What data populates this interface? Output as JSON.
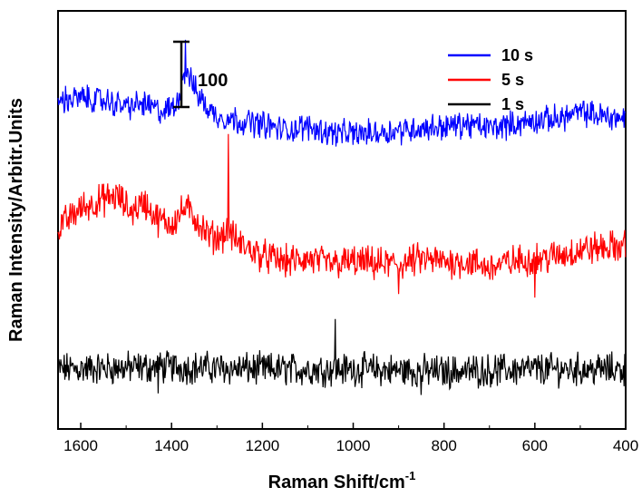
{
  "chart_data": {
    "type": "line",
    "xlabel": "Raman Shift/cm",
    "xlabel_superscript": "-1",
    "ylabel": "Raman Intensity/Arbitr.Units",
    "xlim": [
      1650,
      400
    ],
    "x_reversed": true,
    "x_ticks": [
      1600,
      1400,
      1200,
      1000,
      800,
      600,
      400
    ],
    "y_ticks_shown": false,
    "scale_bar": {
      "label": "100",
      "intensity_units": 100
    },
    "legend_position": "top-right",
    "series": [
      {
        "name": "10 s",
        "color": "#0000ff",
        "offset": 200,
        "baseline": [
          [
            1650,
            25
          ],
          [
            1600,
            27
          ],
          [
            1550,
            25
          ],
          [
            1500,
            20
          ],
          [
            1460,
            22
          ],
          [
            1420,
            15
          ],
          [
            1390,
            20
          ],
          [
            1375,
            45
          ],
          [
            1365,
            50
          ],
          [
            1350,
            35
          ],
          [
            1320,
            18
          ],
          [
            1300,
            12
          ],
          [
            1250,
            8
          ],
          [
            1200,
            5
          ],
          [
            1150,
            0
          ],
          [
            1100,
            3
          ],
          [
            1050,
            -2
          ],
          [
            1000,
            -3
          ],
          [
            950,
            -2
          ],
          [
            900,
            0
          ],
          [
            850,
            2
          ],
          [
            800,
            3
          ],
          [
            750,
            5
          ],
          [
            700,
            2
          ],
          [
            650,
            5
          ],
          [
            600,
            8
          ],
          [
            550,
            10
          ],
          [
            500,
            15
          ],
          [
            450,
            12
          ],
          [
            400,
            10
          ]
        ],
        "noise": 9,
        "spikes": [
          [
            1370,
            28
          ]
        ]
      },
      {
        "name": "5 s",
        "color": "#ff0000",
        "offset": 100,
        "baseline": [
          [
            1650,
            18
          ],
          [
            1600,
            35
          ],
          [
            1550,
            42
          ],
          [
            1520,
            45
          ],
          [
            1490,
            32
          ],
          [
            1460,
            40
          ],
          [
            1430,
            25
          ],
          [
            1400,
            22
          ],
          [
            1370,
            35
          ],
          [
            1350,
            28
          ],
          [
            1320,
            12
          ],
          [
            1300,
            10
          ],
          [
            1275,
            15
          ],
          [
            1250,
            5
          ],
          [
            1200,
            -5
          ],
          [
            1150,
            -10
          ],
          [
            1100,
            -8
          ],
          [
            1050,
            -12
          ],
          [
            1000,
            -10
          ],
          [
            950,
            -12
          ],
          [
            900,
            -12
          ],
          [
            850,
            -8
          ],
          [
            800,
            -10
          ],
          [
            750,
            -10
          ],
          [
            700,
            -15
          ],
          [
            650,
            -10
          ],
          [
            600,
            -8
          ],
          [
            550,
            -5
          ],
          [
            500,
            0
          ],
          [
            450,
            2
          ],
          [
            400,
            3
          ]
        ],
        "noise": 11,
        "spikes": [
          [
            1275,
            82
          ],
          [
            900,
            -25
          ],
          [
            600,
            -32
          ]
        ]
      },
      {
        "name": "1 s",
        "color": "#000000",
        "offset": 0,
        "baseline": [
          [
            1650,
            0
          ],
          [
            1400,
            2
          ],
          [
            1200,
            0
          ],
          [
            1000,
            0
          ],
          [
            800,
            -2
          ],
          [
            600,
            0
          ],
          [
            400,
            0
          ]
        ],
        "noise": 11,
        "spikes": [
          [
            1040,
            42
          ],
          [
            1430,
            -22
          ],
          [
            850,
            -20
          ]
        ]
      }
    ]
  },
  "legend_order": [
    "10 s",
    "5 s",
    "1 s"
  ]
}
